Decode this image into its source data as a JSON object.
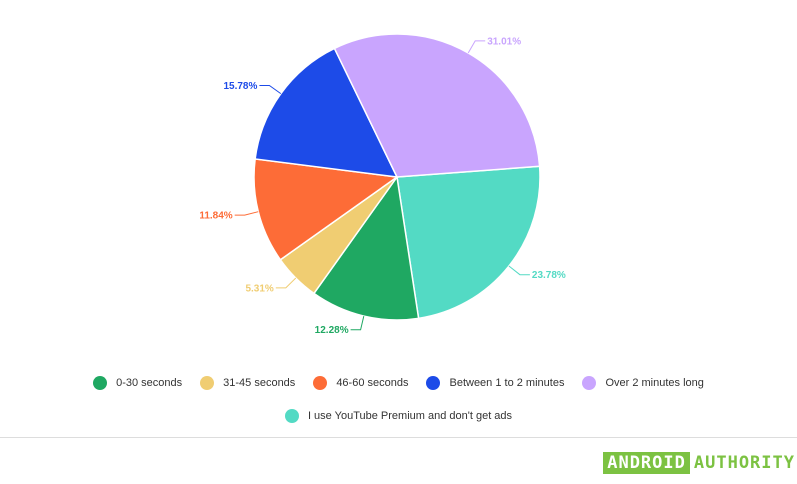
{
  "chart_data": {
    "type": "pie",
    "title": "",
    "slices": [
      {
        "label": "0-30 seconds",
        "value": 12.28,
        "display": "12.28%",
        "color": "#1fa862"
      },
      {
        "label": "31-45 seconds",
        "value": 5.31,
        "display": "5.31%",
        "color": "#f0cd72"
      },
      {
        "label": "46-60 seconds",
        "value": 11.84,
        "display": "11.84%",
        "color": "#fd6c37"
      },
      {
        "label": "Between 1 to 2 minutes",
        "value": 15.78,
        "display": "15.78%",
        "color": "#1d4be8"
      },
      {
        "label": "Over 2 minutes long",
        "value": 31.01,
        "display": "31.01%",
        "color": "#c9a5fe"
      },
      {
        "label": "I use YouTube Premium and don't get ads",
        "value": 23.78,
        "display": "23.78%",
        "color": "#53dac4"
      }
    ],
    "legend_position": "bottom"
  },
  "brand": {
    "logo_part1": "ANDROID",
    "logo_part2": "AUTHORITY",
    "color": "#7cc242"
  }
}
